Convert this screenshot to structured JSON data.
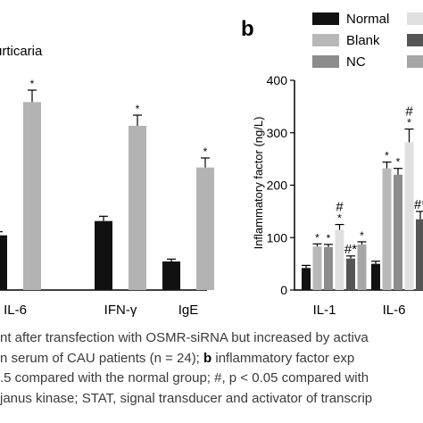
{
  "chart_data": [
    {
      "type": "bar",
      "panel_title": "urticaria",
      "categories": [
        "IL-6",
        "IFN-γ",
        "IgE"
      ],
      "series": [
        {
          "values": [
            46,
            58,
            24
          ],
          "errors": [
            3,
            4,
            2
          ],
          "color": "#111111",
          "stars": [
            "",
            "",
            ""
          ]
        },
        {
          "values": [
            158,
            138,
            103
          ],
          "errors": [
            10,
            9,
            8
          ],
          "color": "#b3b3b3",
          "stars": [
            "*",
            "*",
            "*"
          ]
        }
      ],
      "ylim": [
        0,
        180
      ]
    },
    {
      "type": "bar",
      "panel_label": "b",
      "ylabel": "Inflammatory factor (ng/L)",
      "ylim": [
        0,
        400
      ],
      "yticks": [
        "0",
        "100",
        "200",
        "300",
        "400"
      ],
      "categories": [
        "IL-1",
        "IL-6"
      ],
      "legend": [
        "Normal",
        "Blank",
        "NC",
        "",
        "",
        ""
      ],
      "series": [
        {
          "name": "Normal",
          "color": "#111111",
          "values": [
            42,
            50
          ],
          "errors": [
            5,
            5
          ],
          "marks": [
            "",
            ""
          ]
        },
        {
          "name": "Blank",
          "color": "#b8b8b8",
          "values": [
            83,
            232
          ],
          "errors": [
            5,
            12
          ],
          "marks": [
            "*",
            "*"
          ]
        },
        {
          "name": "NC",
          "color": "#8c8c8c",
          "values": [
            82,
            220
          ],
          "errors": [
            5,
            12
          ],
          "marks": [
            "*",
            "*"
          ]
        },
        {
          "name": "",
          "color": "#e0e0e0",
          "values": [
            115,
            282
          ],
          "errors": [
            10,
            25
          ],
          "marks": [
            "#\n*",
            "#\n*"
          ]
        },
        {
          "name": "",
          "color": "#555555",
          "values": [
            60,
            135
          ],
          "errors": [
            5,
            15
          ],
          "marks": [
            "#*",
            "#*"
          ]
        },
        {
          "name": "",
          "color": "#a6a6a6",
          "values": [
            87,
            0
          ],
          "errors": [
            5,
            0
          ],
          "marks": [
            "*",
            ""
          ]
        }
      ]
    }
  ],
  "caption": {
    "line1": "nt after transfection with OSMR-siRNA but increased by activa",
    "line2a": "n serum of CAU patients (n = 24); ",
    "line2b": "b",
    "line2c": " inflammatory factor exp",
    "line3": ".5 compared with the normal group; #, p < 0.05 compared with",
    "line4": "janus kinase; STAT, signal transducer and activator of transcrip"
  },
  "colors": {
    "caption_text": "#3a3a3a"
  }
}
